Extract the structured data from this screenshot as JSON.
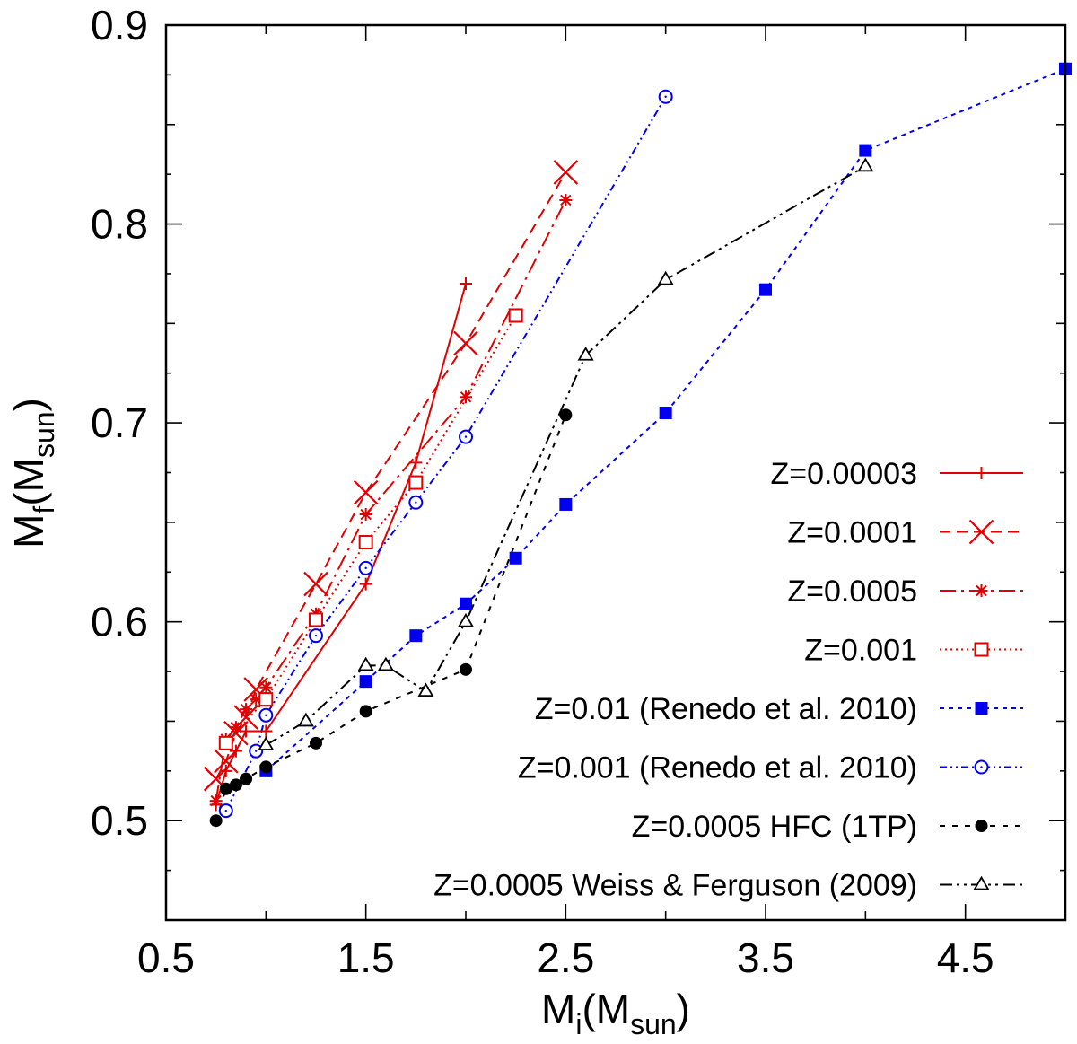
{
  "chart_data": {
    "type": "line",
    "title": "",
    "xlabel": {
      "main": "M",
      "sub": "i",
      "paren_open": "(M",
      "paren_sub": "sun",
      "paren_close": ")"
    },
    "ylabel": {
      "main": "M",
      "sub": "f",
      "paren_open": "(M",
      "paren_sub": "sun",
      "paren_close": ")"
    },
    "xlim": [
      0.5,
      5.0
    ],
    "ylim": [
      0.45,
      0.9
    ],
    "xticks": [
      0.5,
      1.5,
      2.5,
      3.5,
      4.5
    ],
    "xtick_labels": [
      "0.5",
      "1.5",
      "2.5",
      "3.5",
      "4.5"
    ],
    "yticks": [
      0.5,
      0.6,
      0.7,
      0.8,
      0.9
    ],
    "ytick_labels": [
      "0.5",
      "0.6",
      "0.7",
      "0.8",
      "0.9"
    ],
    "legend_position": "right",
    "series": [
      {
        "name": "Z=0.00003",
        "color": "#e00000",
        "marker": "plus",
        "dash": "",
        "x": [
          0.75,
          0.8,
          0.85,
          0.9,
          1.0,
          1.5,
          1.75,
          2.0
        ],
        "y": [
          0.508,
          0.525,
          0.535,
          0.545,
          0.545,
          0.619,
          0.68,
          0.77
        ]
      },
      {
        "name": "Z=0.0001",
        "color": "#e00000",
        "marker": "cross",
        "dash": "12,7",
        "x": [
          0.75,
          0.8,
          0.85,
          0.9,
          0.95,
          1.25,
          1.5,
          2.0,
          2.5
        ],
        "y": [
          0.521,
          0.53,
          0.544,
          0.552,
          0.566,
          0.619,
          0.665,
          0.74,
          0.826
        ]
      },
      {
        "name": "Z=0.0005",
        "color": "#e00000",
        "marker": "star",
        "dash": "18,6,3,6",
        "x": [
          0.75,
          0.8,
          0.85,
          0.9,
          0.95,
          1.0,
          1.25,
          1.5,
          2.0,
          2.5
        ],
        "y": [
          0.51,
          0.541,
          0.547,
          0.556,
          0.561,
          0.567,
          0.604,
          0.654,
          0.713,
          0.812
        ]
      },
      {
        "name": "Z=0.001",
        "color": "#e00000",
        "marker": "square-open",
        "dash": "2,4",
        "x": [
          0.8,
          1.0,
          1.25,
          1.5,
          1.75,
          2.25
        ],
        "y": [
          0.539,
          0.561,
          0.601,
          0.64,
          0.67,
          0.754
        ]
      },
      {
        "name": "Z=0.01 (Renedo et al. 2010)",
        "color": "#0000ee",
        "marker": "square-filled",
        "dash": "5,5",
        "x": [
          1.0,
          1.5,
          1.75,
          2.0,
          2.25,
          2.5,
          3.0,
          3.5,
          4.0,
          5.0
        ],
        "y": [
          0.525,
          0.57,
          0.593,
          0.609,
          0.632,
          0.659,
          0.705,
          0.767,
          0.837,
          0.878
        ]
      },
      {
        "name": "Z=0.001 (Renedo et al. 2010)",
        "color": "#0000ee",
        "marker": "circle-open",
        "dash": "8,4,2,4,2,4",
        "x": [
          0.8,
          0.95,
          1.0,
          1.25,
          1.5,
          1.75,
          2.0,
          3.0
        ],
        "y": [
          0.505,
          0.535,
          0.553,
          0.593,
          0.627,
          0.66,
          0.693,
          0.864
        ]
      },
      {
        "name": "Z=0.0005 HFC (1TP)",
        "color": "#000000",
        "marker": "circle-filled",
        "dash": "6,8",
        "x": [
          0.75,
          0.8,
          0.85,
          0.9,
          1.0,
          1.25,
          1.5,
          2.0,
          2.5
        ],
        "y": [
          0.5,
          0.516,
          0.518,
          0.521,
          0.527,
          0.539,
          0.555,
          0.576,
          0.704
        ]
      },
      {
        "name": "Z=0.0005 Weiss & Ferguson (2009)",
        "color": "#000000",
        "marker": "triangle-open",
        "dash": "14,5,3,5,3,5",
        "x": [
          1.0,
          1.2,
          1.5,
          1.6,
          1.8,
          2.0,
          2.6,
          3.0,
          4.0
        ],
        "y": [
          0.538,
          0.55,
          0.578,
          0.578,
          0.565,
          0.6,
          0.734,
          0.772,
          0.829
        ]
      }
    ]
  }
}
